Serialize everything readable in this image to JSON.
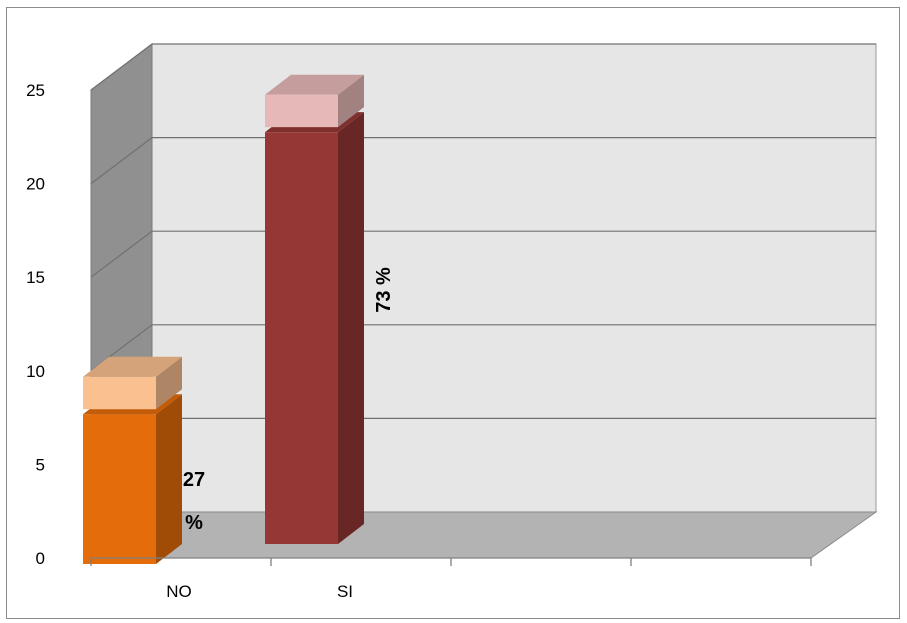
{
  "chart_data": {
    "type": "bar",
    "variant": "3d-stacked-column",
    "categories": [
      "NO",
      "SI"
    ],
    "series": [
      {
        "values": [
          8,
          22
        ],
        "colors": [
          "#e46c0a",
          "#953735"
        ]
      },
      {
        "values": [
          2,
          2
        ],
        "colors": [
          "#fac090",
          "#e6b9b8"
        ]
      }
    ],
    "data_labels": [
      "27 %",
      "73 %"
    ],
    "yticks": [
      "0",
      "5",
      "10",
      "15",
      "20",
      "25"
    ],
    "ylim": [
      0,
      25
    ],
    "grid": true,
    "legend": "none",
    "colors": {
      "wall": "#e6e6e6",
      "side_wall": "#909090",
      "floor": "#b3b3b3",
      "gridline": "#707070"
    }
  }
}
